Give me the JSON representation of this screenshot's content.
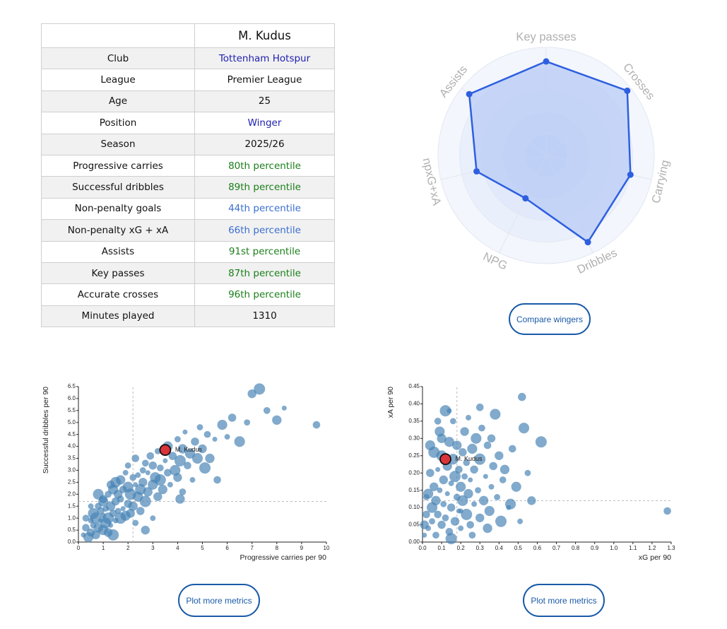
{
  "table": {
    "player": "M. Kudus",
    "rows": [
      {
        "label": "Club",
        "value": "Tottenham Hotspur",
        "color": "#1f1fb0"
      },
      {
        "label": "League",
        "value": "Premier League",
        "color": "#111111"
      },
      {
        "label": "Age",
        "value": "25",
        "color": "#111111"
      },
      {
        "label": "Position",
        "value": "Winger",
        "color": "#1f1fb0"
      },
      {
        "label": "Season",
        "value": "2025/26",
        "color": "#111111"
      },
      {
        "label": "Progressive carries",
        "value": "80th percentile",
        "color": "#1a7f1a"
      },
      {
        "label": "Successful dribbles",
        "value": "89th percentile",
        "color": "#1a7f1a"
      },
      {
        "label": "Non-penalty goals",
        "value": "44th percentile",
        "color": "#3a6fd1"
      },
      {
        "label": "Non-penalty xG + xA",
        "value": "66th percentile",
        "color": "#3a6fd1"
      },
      {
        "label": "Assists",
        "value": "91st percentile",
        "color": "#1a7f1a"
      },
      {
        "label": "Key passes",
        "value": "87th percentile",
        "color": "#1a7f1a"
      },
      {
        "label": "Accurate crosses",
        "value": "96th percentile",
        "color": "#1a7f1a"
      },
      {
        "label": "Minutes played",
        "value": "1310",
        "color": "#111111"
      }
    ]
  },
  "radar": {
    "axes": [
      "Key passes",
      "Crosses",
      "Carrying",
      "Dribbles",
      "NPG",
      "npxG+xA",
      "Assists"
    ],
    "values": [
      87,
      96,
      80,
      89,
      44,
      66,
      91
    ],
    "fill_color": "#b9ccf5",
    "line_color": "#2e5fe0",
    "label_color": "#b0b0b0"
  },
  "compare_button": "Compare wingers",
  "plot_more_1": "Plot more metrics",
  "plot_more_2": "Plot more metrics",
  "chart_data": [
    {
      "type": "scatter",
      "xlabel": "Progressive carries per 90",
      "ylabel": "Successful dribbles per 90",
      "xlim": [
        0,
        10
      ],
      "ylim": [
        0,
        6.5
      ],
      "xticks": [
        "0",
        "1",
        "2",
        "3",
        "4",
        "5",
        "6",
        "7",
        "8",
        "9",
        "10"
      ],
      "yticks": [
        "0.0",
        "0.5",
        "1.0",
        "1.5",
        "2.0",
        "2.5",
        "3.0",
        "3.5",
        "4.0",
        "4.5",
        "5.0",
        "5.5",
        "6.0",
        "6.5"
      ],
      "grid": false,
      "reference_lines": {
        "x": 2.2,
        "y": 1.7
      },
      "highlight": {
        "label": "M. Kudus",
        "x": 3.5,
        "y": 3.85
      },
      "points": [
        [
          0.2,
          0.3
        ],
        [
          0.3,
          0.6
        ],
        [
          0.4,
          0.2
        ],
        [
          0.5,
          0.9
        ],
        [
          0.5,
          0.4
        ],
        [
          0.6,
          1.2
        ],
        [
          0.6,
          0.7
        ],
        [
          0.7,
          0.3
        ],
        [
          0.7,
          1.0
        ],
        [
          0.8,
          1.5
        ],
        [
          0.8,
          0.6
        ],
        [
          0.9,
          0.9
        ],
        [
          0.9,
          1.3
        ],
        [
          1.0,
          0.5
        ],
        [
          1.0,
          1.1
        ],
        [
          1.0,
          1.8
        ],
        [
          1.1,
          0.8
        ],
        [
          1.1,
          1.4
        ],
        [
          1.2,
          0.4
        ],
        [
          1.2,
          1.0
        ],
        [
          1.2,
          2.0
        ],
        [
          1.3,
          1.5
        ],
        [
          1.3,
          0.7
        ],
        [
          1.4,
          1.2
        ],
        [
          1.4,
          2.2
        ],
        [
          1.5,
          0.9
        ],
        [
          1.5,
          1.7
        ],
        [
          1.5,
          2.5
        ],
        [
          1.6,
          1.3
        ],
        [
          1.6,
          2.0
        ],
        [
          1.7,
          1.0
        ],
        [
          1.7,
          1.8
        ],
        [
          1.7,
          2.6
        ],
        [
          1.8,
          1.4
        ],
        [
          1.8,
          2.2
        ],
        [
          1.9,
          1.1
        ],
        [
          1.9,
          2.9
        ],
        [
          2.0,
          1.6
        ],
        [
          2.0,
          2.3
        ],
        [
          2.0,
          3.2
        ],
        [
          2.1,
          1.2
        ],
        [
          2.1,
          2.0
        ],
        [
          2.2,
          2.7
        ],
        [
          2.2,
          1.5
        ],
        [
          2.3,
          2.4
        ],
        [
          2.3,
          3.5
        ],
        [
          2.4,
          1.9
        ],
        [
          2.4,
          2.8
        ],
        [
          2.5,
          1.3
        ],
        [
          2.5,
          2.2
        ],
        [
          2.6,
          3.0
        ],
        [
          2.6,
          2.5
        ],
        [
          2.7,
          1.7
        ],
        [
          2.7,
          3.3
        ],
        [
          2.8,
          2.1
        ],
        [
          2.8,
          2.9
        ],
        [
          2.9,
          3.6
        ],
        [
          3.0,
          2.4
        ],
        [
          3.0,
          1.0
        ],
        [
          3.0,
          3.2
        ],
        [
          3.1,
          2.7
        ],
        [
          3.2,
          3.8
        ],
        [
          3.2,
          1.9
        ],
        [
          3.3,
          2.6
        ],
        [
          3.3,
          3.1
        ],
        [
          3.4,
          2.2
        ],
        [
          3.5,
          3.4
        ],
        [
          3.6,
          2.9
        ],
        [
          3.6,
          4.0
        ],
        [
          3.7,
          2.4
        ],
        [
          3.8,
          3.6
        ],
        [
          3.9,
          3.0
        ],
        [
          4.0,
          4.3
        ],
        [
          4.0,
          2.7
        ],
        [
          4.1,
          3.4
        ],
        [
          4.2,
          2.1
        ],
        [
          4.2,
          3.9
        ],
        [
          4.3,
          4.6
        ],
        [
          4.4,
          3.2
        ],
        [
          4.5,
          3.7
        ],
        [
          4.6,
          2.6
        ],
        [
          4.7,
          4.2
        ],
        [
          4.8,
          3.5
        ],
        [
          4.9,
          4.8
        ],
        [
          5.0,
          3.9
        ],
        [
          5.1,
          3.1
        ],
        [
          5.2,
          4.5
        ],
        [
          5.3,
          3.5
        ],
        [
          5.5,
          4.3
        ],
        [
          5.6,
          2.6
        ],
        [
          5.8,
          4.9
        ],
        [
          6.0,
          4.4
        ],
        [
          6.2,
          5.2
        ],
        [
          6.5,
          4.2
        ],
        [
          6.8,
          5.0
        ],
        [
          7.0,
          6.2
        ],
        [
          7.3,
          6.4
        ],
        [
          7.6,
          5.5
        ],
        [
          8.0,
          5.1
        ],
        [
          8.3,
          5.6
        ],
        [
          9.6,
          4.9
        ],
        [
          1.0,
          1.7
        ],
        [
          0.5,
          1.5
        ],
        [
          1.3,
          2.4
        ],
        [
          0.8,
          2.0
        ],
        [
          2.3,
          0.8
        ],
        [
          2.7,
          0.5
        ],
        [
          1.4,
          0.3
        ],
        [
          0.3,
          1.0
        ],
        [
          4.1,
          1.8
        ]
      ]
    },
    {
      "type": "scatter",
      "xlabel": "xG per 90",
      "ylabel": "xA per 90",
      "xlim": [
        0,
        1.3
      ],
      "ylim": [
        0,
        0.45
      ],
      "xticks": [
        "0.0",
        "0.1",
        "0.2",
        "0.3",
        "0.4",
        "0.5",
        "0.6",
        "0.7",
        "0.8",
        "0.9",
        "1.0",
        "1.1",
        "1.2",
        "1.3"
      ],
      "yticks": [
        "0.00",
        "0.05",
        "0.10",
        "0.15",
        "0.20",
        "0.25",
        "0.30",
        "0.35",
        "0.40",
        "0.45"
      ],
      "grid": false,
      "reference_lines": {
        "x": 0.18,
        "y": 0.12
      },
      "highlight": {
        "label": "M. Kudus",
        "x": 0.12,
        "y": 0.24
      },
      "points": [
        [
          0.01,
          0.02
        ],
        [
          0.02,
          0.08
        ],
        [
          0.03,
          0.14
        ],
        [
          0.03,
          0.04
        ],
        [
          0.04,
          0.2
        ],
        [
          0.05,
          0.1
        ],
        [
          0.05,
          0.06
        ],
        [
          0.06,
          0.16
        ],
        [
          0.06,
          0.26
        ],
        [
          0.07,
          0.02
        ],
        [
          0.07,
          0.12
        ],
        [
          0.08,
          0.21
        ],
        [
          0.08,
          0.08
        ],
        [
          0.09,
          0.32
        ],
        [
          0.09,
          0.15
        ],
        [
          0.1,
          0.05
        ],
        [
          0.1,
          0.25
        ],
        [
          0.11,
          0.11
        ],
        [
          0.11,
          0.18
        ],
        [
          0.12,
          0.38
        ],
        [
          0.12,
          0.07
        ],
        [
          0.13,
          0.22
        ],
        [
          0.13,
          0.14
        ],
        [
          0.14,
          0.03
        ],
        [
          0.14,
          0.29
        ],
        [
          0.15,
          0.17
        ],
        [
          0.15,
          0.1
        ],
        [
          0.16,
          0.24
        ],
        [
          0.16,
          0.35
        ],
        [
          0.17,
          0.06
        ],
        [
          0.17,
          0.19
        ],
        [
          0.18,
          0.13
        ],
        [
          0.18,
          0.28
        ],
        [
          0.19,
          0.09
        ],
        [
          0.19,
          0.21
        ],
        [
          0.2,
          0.16
        ],
        [
          0.2,
          0.04
        ],
        [
          0.21,
          0.26
        ],
        [
          0.21,
          0.12
        ],
        [
          0.22,
          0.19
        ],
        [
          0.22,
          0.32
        ],
        [
          0.23,
          0.08
        ],
        [
          0.23,
          0.23
        ],
        [
          0.24,
          0.14
        ],
        [
          0.25,
          0.18
        ],
        [
          0.25,
          0.05
        ],
        [
          0.26,
          0.27
        ],
        [
          0.27,
          0.11
        ],
        [
          0.27,
          0.21
        ],
        [
          0.28,
          0.3
        ],
        [
          0.29,
          0.15
        ],
        [
          0.3,
          0.07
        ],
        [
          0.3,
          0.24
        ],
        [
          0.31,
          0.33
        ],
        [
          0.32,
          0.12
        ],
        [
          0.33,
          0.19
        ],
        [
          0.34,
          0.28
        ],
        [
          0.35,
          0.09
        ],
        [
          0.36,
          0.16
        ],
        [
          0.37,
          0.22
        ],
        [
          0.38,
          0.37
        ],
        [
          0.39,
          0.13
        ],
        [
          0.4,
          0.25
        ],
        [
          0.41,
          0.06
        ],
        [
          0.42,
          0.18
        ],
        [
          0.43,
          0.21
        ],
        [
          0.45,
          0.1
        ],
        [
          0.47,
          0.27
        ],
        [
          0.49,
          0.16
        ],
        [
          0.51,
          0.06
        ],
        [
          0.52,
          0.42
        ],
        [
          0.53,
          0.33
        ],
        [
          0.55,
          0.2
        ],
        [
          0.57,
          0.12
        ],
        [
          0.62,
          0.29
        ],
        [
          0.08,
          0.35
        ],
        [
          0.1,
          0.3
        ],
        [
          0.14,
          0.38
        ],
        [
          0.3,
          0.39
        ],
        [
          0.04,
          0.28
        ],
        [
          0.24,
          0.36
        ],
        [
          0.36,
          0.3
        ],
        [
          0.46,
          0.11
        ],
        [
          0.02,
          0.13
        ],
        [
          0.01,
          0.05
        ],
        [
          0.15,
          0.01
        ],
        [
          0.26,
          0.02
        ],
        [
          0.34,
          0.04
        ],
        [
          0.2,
          0.09
        ],
        [
          1.28,
          0.09
        ]
      ]
    }
  ]
}
